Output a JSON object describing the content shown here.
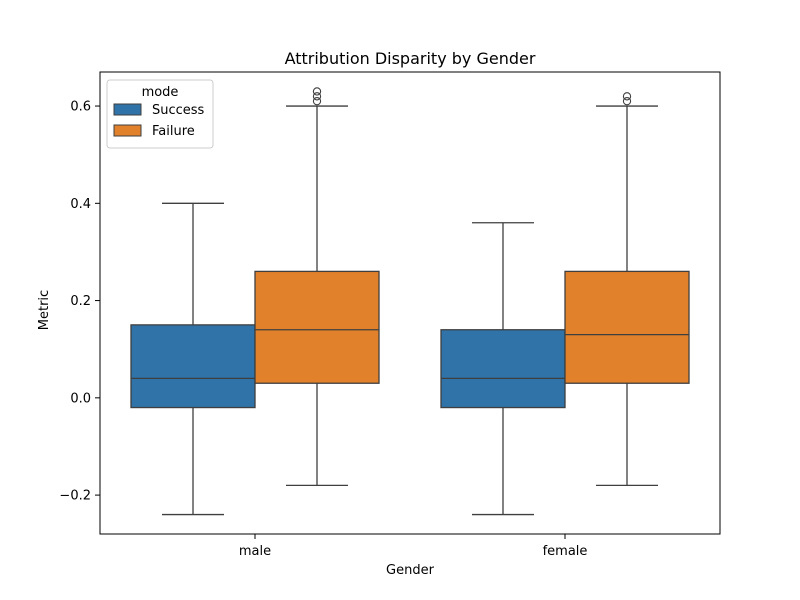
{
  "chart_data": {
    "type": "boxplot",
    "title": "Attribution Disparity by Gender",
    "xlabel": "Gender",
    "ylabel": "Metric",
    "categories": [
      "male",
      "female"
    ],
    "ylim": [
      -0.28,
      0.67
    ],
    "yticks": [
      -0.2,
      0.0,
      0.2,
      0.4,
      0.6
    ],
    "ytick_labels": [
      "−0.2",
      "0.0",
      "0.2",
      "0.4",
      "0.6"
    ],
    "grid": false,
    "legend": {
      "title": "mode",
      "placement": "top-left"
    },
    "series": [
      {
        "name": "Success",
        "color": "#2f73a8",
        "boxes": [
          {
            "category": "male",
            "whislo": -0.24,
            "q1": -0.02,
            "med": 0.04,
            "q3": 0.15,
            "whishi": 0.4,
            "fliers": []
          },
          {
            "category": "female",
            "whislo": -0.24,
            "q1": -0.02,
            "med": 0.04,
            "q3": 0.14,
            "whishi": 0.36,
            "fliers": []
          }
        ]
      },
      {
        "name": "Failure",
        "color": "#e1812c",
        "boxes": [
          {
            "category": "male",
            "whislo": -0.18,
            "q1": 0.03,
            "med": 0.14,
            "q3": 0.26,
            "whishi": 0.6,
            "fliers": [
              0.61,
              0.62,
              0.63
            ]
          },
          {
            "category": "female",
            "whislo": -0.18,
            "q1": 0.03,
            "med": 0.13,
            "q3": 0.26,
            "whishi": 0.6,
            "fliers": [
              0.61,
              0.62
            ]
          }
        ]
      }
    ]
  }
}
